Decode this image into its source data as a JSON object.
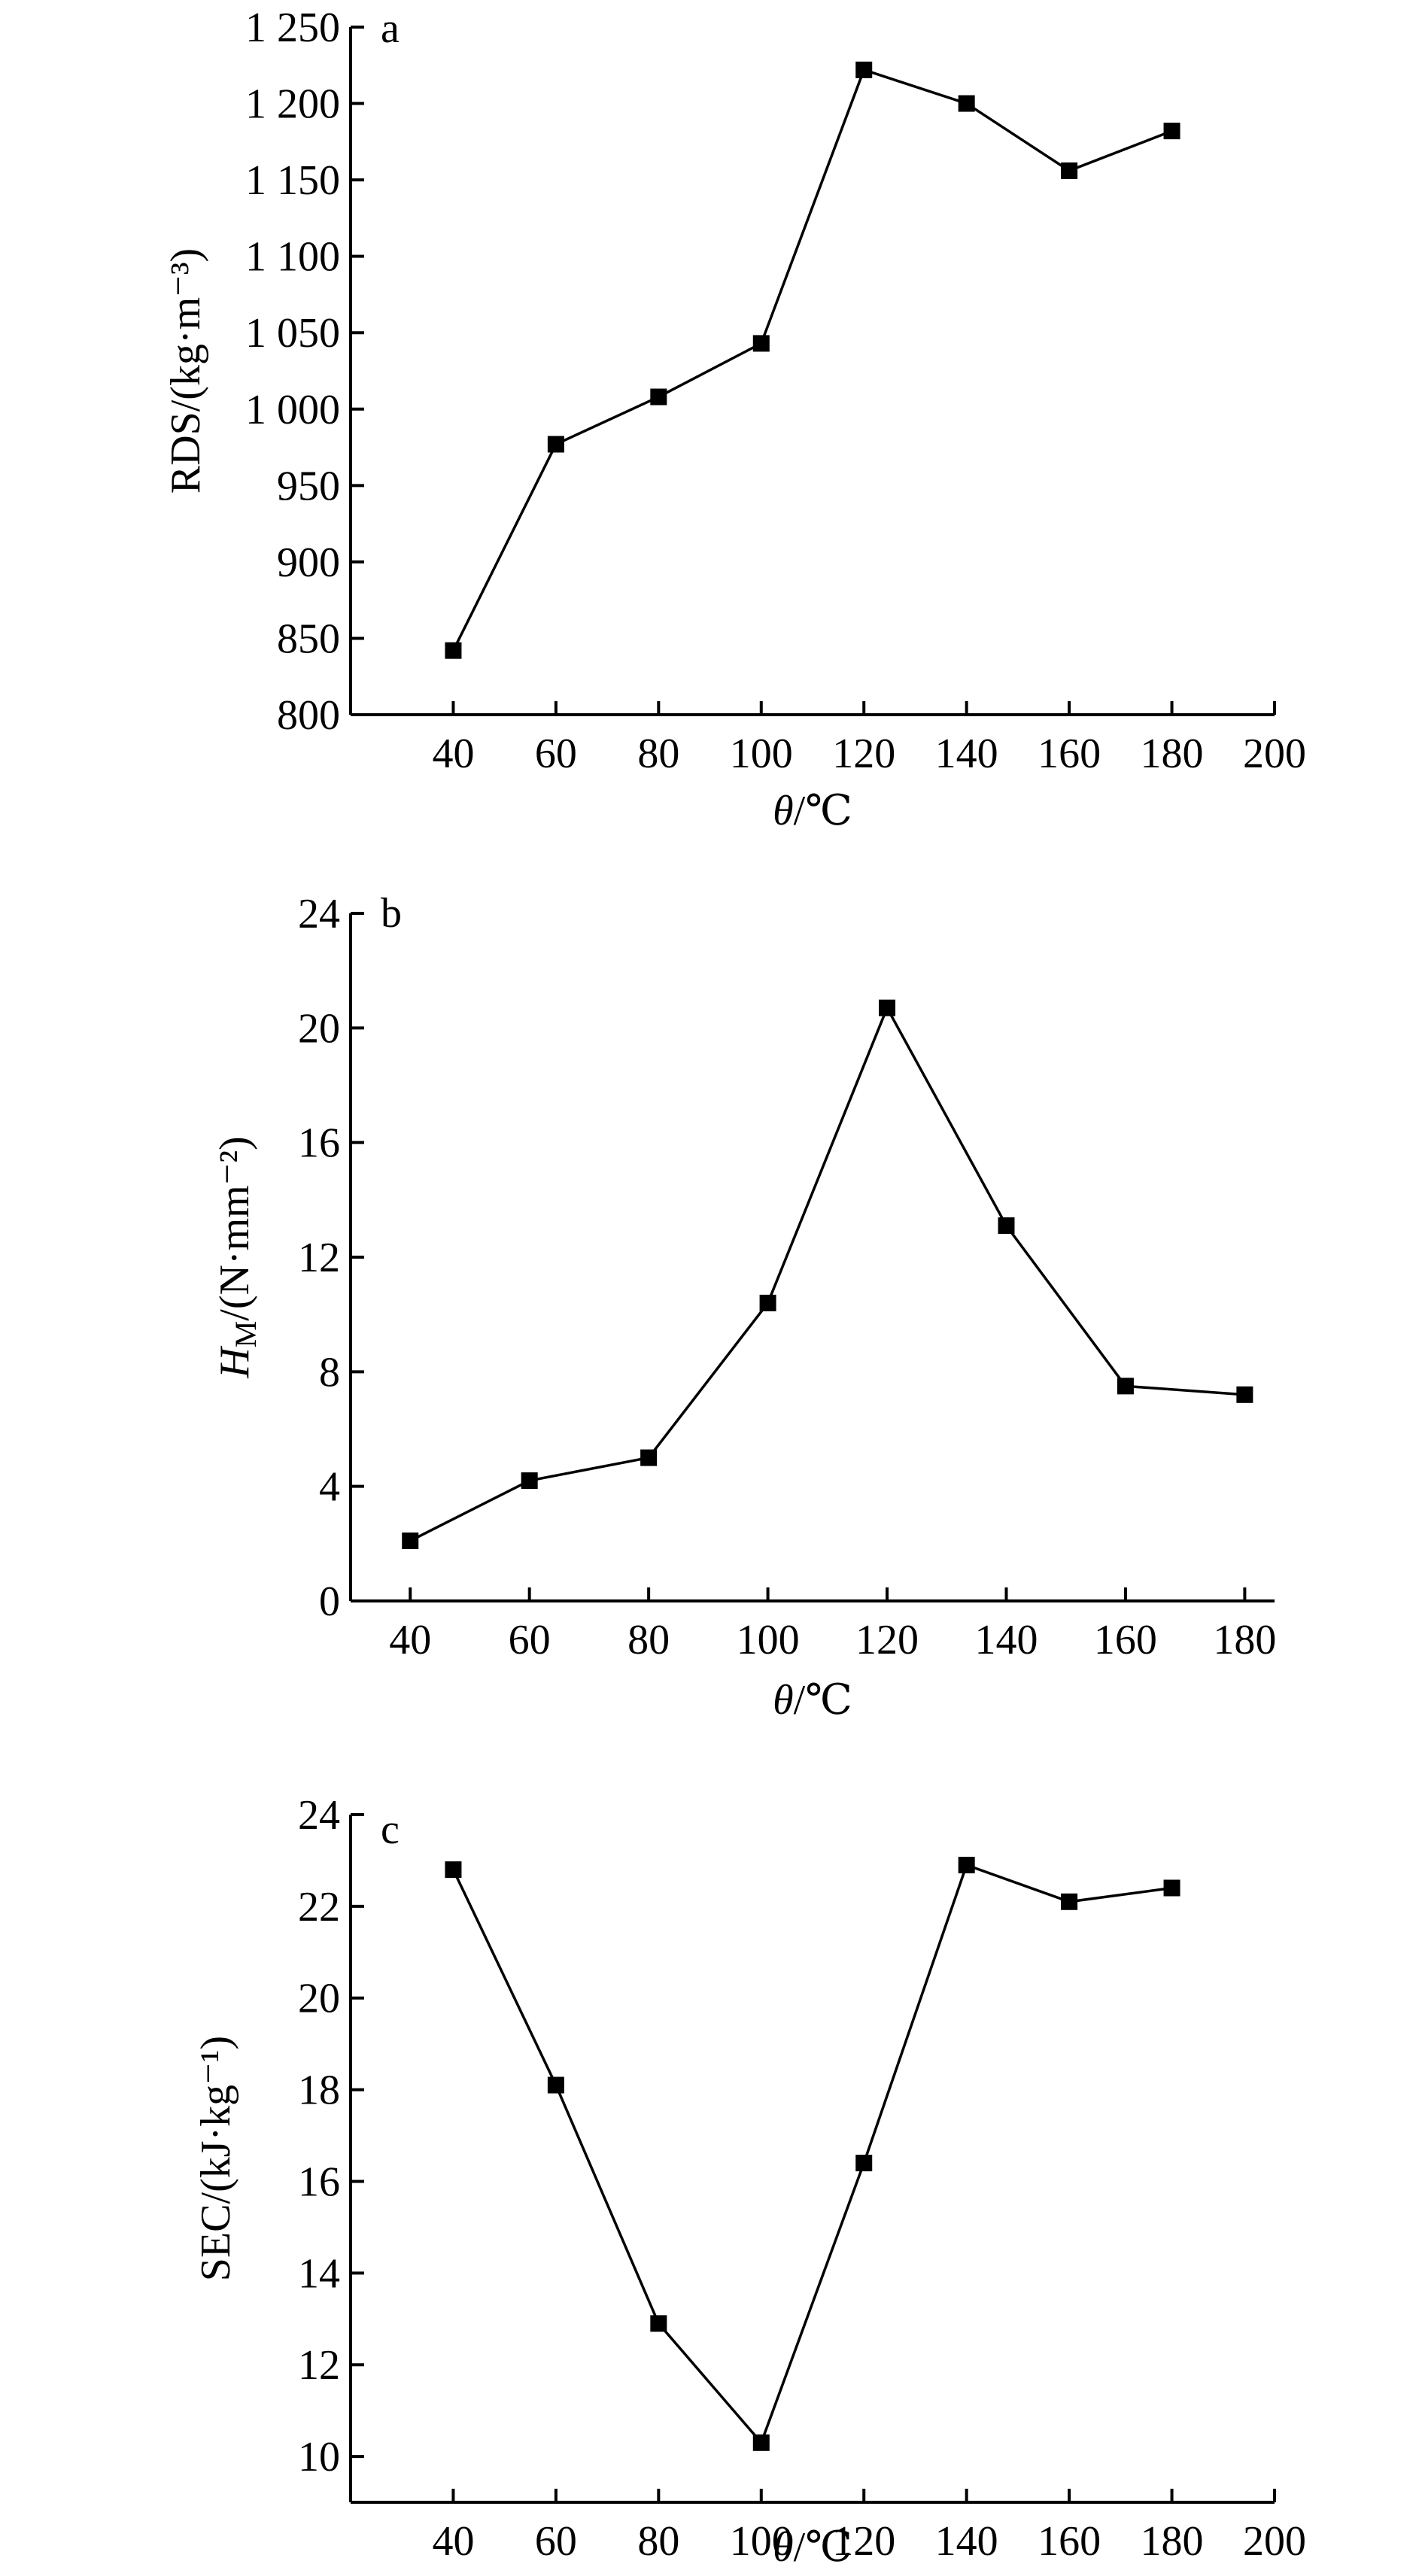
{
  "chart_data": [
    {
      "type": "line",
      "panel_label": "a",
      "ylabel": "RDS/(kg·m⁻³)",
      "xlabel": "θ/℃",
      "xlim": [
        20,
        200
      ],
      "ylim": [
        800,
        1250
      ],
      "xticks": [
        40,
        60,
        80,
        100,
        120,
        140,
        160,
        180,
        200
      ],
      "xtick_labels": [
        "40",
        "60",
        "80",
        "100",
        "120",
        "140",
        "160",
        "180",
        "200"
      ],
      "yticks": [
        800,
        850,
        900,
        950,
        1000,
        1050,
        1100,
        1150,
        1200,
        1250
      ],
      "ytick_labels": [
        "800",
        "850",
        "900",
        "950",
        "1 000",
        "1 050",
        "1 100",
        "1 150",
        "1 200",
        "1 250"
      ],
      "grid": false,
      "series": [
        {
          "x": [
            40,
            60,
            80,
            100,
            120,
            140,
            160,
            180
          ],
          "y": [
            842,
            977,
            1008,
            1043,
            1222,
            1200,
            1156,
            1182
          ]
        }
      ]
    },
    {
      "type": "line",
      "panel_label": "b",
      "ylabel": "HM/(N·mm⁻²)",
      "xlabel": "θ/℃",
      "xlim": [
        30,
        185
      ],
      "ylim": [
        0,
        24
      ],
      "xticks": [
        40,
        60,
        80,
        100,
        120,
        140,
        160,
        180
      ],
      "xtick_labels": [
        "40",
        "60",
        "80",
        "100",
        "120",
        "140",
        "160",
        "180"
      ],
      "yticks": [
        0,
        4,
        8,
        12,
        16,
        20,
        24
      ],
      "ytick_labels": [
        "0",
        "4",
        "8",
        "12",
        "16",
        "20",
        "24"
      ],
      "grid": false,
      "series": [
        {
          "x": [
            40,
            60,
            80,
            100,
            120,
            140,
            160,
            180
          ],
          "y": [
            2.1,
            4.2,
            5.0,
            10.4,
            20.7,
            13.1,
            7.5,
            7.2
          ]
        }
      ]
    },
    {
      "type": "line",
      "panel_label": "c",
      "ylabel": "SEC/(kJ·kg⁻¹)",
      "xlabel": "θ/℃",
      "xlim": [
        20,
        200
      ],
      "ylim": [
        9,
        24
      ],
      "xticks": [
        40,
        60,
        80,
        100,
        120,
        140,
        160,
        180,
        200
      ],
      "xtick_labels": [
        "40",
        "60",
        "80",
        "100",
        "120",
        "140",
        "160",
        "180",
        "200"
      ],
      "yticks": [
        10,
        12,
        14,
        16,
        18,
        20,
        22,
        24
      ],
      "ytick_labels": [
        "10",
        "12",
        "14",
        "16",
        "18",
        "20",
        "22",
        "24"
      ],
      "grid": false,
      "series": [
        {
          "x": [
            40,
            60,
            80,
            100,
            120,
            140,
            160,
            180
          ],
          "y": [
            22.8,
            18.1,
            12.9,
            10.3,
            16.4,
            22.9,
            22.1,
            22.4
          ]
        }
      ]
    }
  ]
}
